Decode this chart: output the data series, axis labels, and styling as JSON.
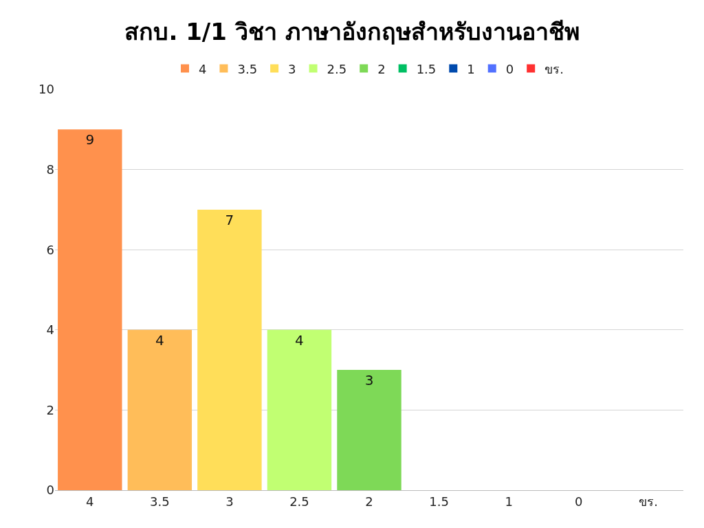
{
  "chart_data": {
    "type": "bar",
    "title": "สกบ. 1/1 วิชา ภาษาอังกฤษสำหรับงานอาชีพ",
    "categories": [
      "4",
      "3.5",
      "3",
      "2.5",
      "2",
      "1.5",
      "1",
      "0",
      "ขร."
    ],
    "series": [
      {
        "name": "4",
        "color": "#ff914d",
        "values": [
          9,
          null,
          null,
          null,
          null,
          null,
          null,
          null,
          null
        ],
        "value_labels": [
          "9",
          null,
          null,
          null,
          null,
          null,
          null,
          null,
          null
        ]
      },
      {
        "name": "3.5",
        "color": "#ffbd59",
        "values": [
          null,
          4,
          null,
          null,
          null,
          null,
          null,
          null,
          null
        ],
        "value_labels": [
          null,
          "4",
          null,
          null,
          null,
          null,
          null,
          null,
          null
        ]
      },
      {
        "name": "3",
        "color": "#ffde59",
        "values": [
          null,
          null,
          7,
          null,
          null,
          null,
          null,
          null,
          null
        ],
        "value_labels": [
          null,
          null,
          "7",
          null,
          null,
          null,
          null,
          null,
          null
        ]
      },
      {
        "name": "2.5",
        "color": "#c1ff72",
        "values": [
          null,
          null,
          null,
          4,
          null,
          null,
          null,
          null,
          null
        ],
        "value_labels": [
          null,
          null,
          null,
          "4",
          null,
          null,
          null,
          null,
          null
        ]
      },
      {
        "name": "2",
        "color": "#7ed957",
        "values": [
          null,
          null,
          null,
          null,
          3,
          null,
          null,
          null,
          null
        ],
        "value_labels": [
          null,
          null,
          null,
          null,
          "3",
          null,
          null,
          null,
          null
        ]
      },
      {
        "name": "1.5",
        "color": "#00bf63",
        "values": [
          null,
          null,
          null,
          null,
          null,
          0,
          null,
          null,
          null
        ]
      },
      {
        "name": "1",
        "color": "#004aad",
        "values": [
          null,
          null,
          null,
          null,
          null,
          null,
          0,
          null,
          null
        ]
      },
      {
        "name": "0",
        "color": "#5271ff",
        "values": [
          null,
          null,
          null,
          null,
          null,
          null,
          null,
          0,
          null
        ]
      },
      {
        "name": "ขร.",
        "color": "#ff3131",
        "values": [
          null,
          null,
          null,
          null,
          null,
          null,
          null,
          null,
          0
        ]
      }
    ],
    "ylim": [
      0,
      10
    ],
    "yticks": [
      0,
      2,
      4,
      6,
      8,
      10
    ],
    "grid": "y",
    "legend": "top"
  }
}
